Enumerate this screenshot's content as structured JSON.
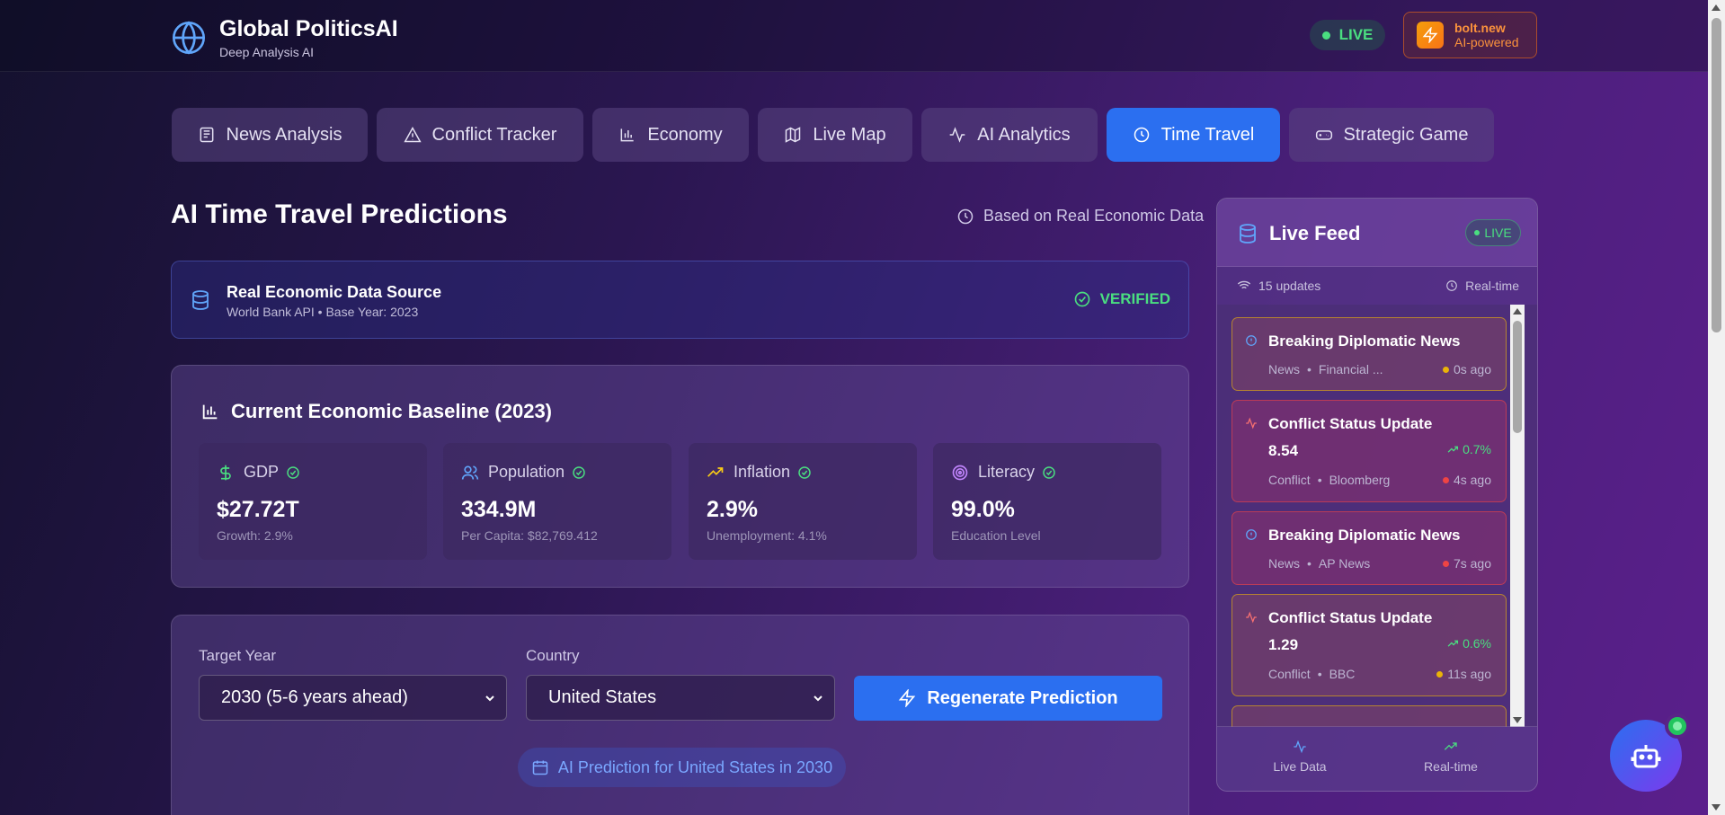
{
  "header": {
    "title": "Global PoliticsAI",
    "subtitle": "Deep Analysis AI",
    "live_label": "LIVE",
    "bolt_name": "bolt.new",
    "bolt_tagline": "AI-powered"
  },
  "tabs": [
    {
      "label": "News Analysis",
      "icon": "newspaper-icon"
    },
    {
      "label": "Conflict Tracker",
      "icon": "alert-triangle-icon"
    },
    {
      "label": "Economy",
      "icon": "bar-chart-icon"
    },
    {
      "label": "Live Map",
      "icon": "map-icon"
    },
    {
      "label": "AI Analytics",
      "icon": "activity-icon"
    },
    {
      "label": "Time Travel",
      "icon": "clock-icon",
      "active": true
    },
    {
      "label": "Strategic Game",
      "icon": "gamepad-icon"
    }
  ],
  "main": {
    "title": "AI Time Travel Predictions",
    "based_on": "Based on Real Economic Data",
    "source": {
      "title": "Real Economic Data Source",
      "subtitle": "World Bank API • Base Year: 2023",
      "status": "VERIFIED"
    },
    "baseline": {
      "title": "Current Economic Baseline (2023)",
      "metrics": [
        {
          "label": "GDP",
          "value": "$27.72T",
          "sub": "Growth: 2.9%",
          "icon": "dollar-icon",
          "color": "#4ade80"
        },
        {
          "label": "Population",
          "value": "334.9M",
          "sub": "Per Capita: $82,769.412",
          "icon": "users-icon",
          "color": "#60a5fa"
        },
        {
          "label": "Inflation",
          "value": "2.9%",
          "sub": "Unemployment: 4.1%",
          "icon": "trending-up-icon",
          "color": "#facc15"
        },
        {
          "label": "Literacy",
          "value": "99.0%",
          "sub": "Education Level",
          "icon": "target-icon",
          "color": "#c084fc"
        }
      ]
    },
    "controls": {
      "target_year_label": "Target Year",
      "target_year_value": "2030 (5-6 years ahead)",
      "country_label": "Country",
      "country_value": "United States",
      "regenerate_label": "Regenerate Prediction",
      "prediction_pill": "AI Prediction for United States in 2030"
    }
  },
  "feed": {
    "title": "Live Feed",
    "live_badge": "LIVE",
    "updates": "15 updates",
    "realtime": "Real-time",
    "items": [
      {
        "title": "Breaking Diplomatic News",
        "category": "News",
        "source": "Financial ...",
        "time": "0s ago",
        "style": "gold",
        "dot": "#eab308",
        "icon": "info-icon"
      },
      {
        "title": "Conflict Status Update",
        "value": "8.54",
        "delta": "0.7%",
        "category": "Conflict",
        "source": "Bloomberg",
        "time": "4s ago",
        "style": "red",
        "dot": "#ef4444",
        "icon": "activity-icon"
      },
      {
        "title": "Breaking Diplomatic News",
        "category": "News",
        "source": "AP News",
        "time": "7s ago",
        "style": "red",
        "dot": "#ef4444",
        "icon": "info-icon"
      },
      {
        "title": "Conflict Status Update",
        "value": "1.29",
        "delta": "0.6%",
        "category": "Conflict",
        "source": "BBC",
        "time": "11s ago",
        "style": "gold",
        "dot": "#eab308",
        "icon": "activity-icon"
      }
    ],
    "footer": [
      {
        "label": "Live Data",
        "icon": "activity-icon"
      },
      {
        "label": "Real-time",
        "icon": "trending-up-icon"
      }
    ]
  }
}
